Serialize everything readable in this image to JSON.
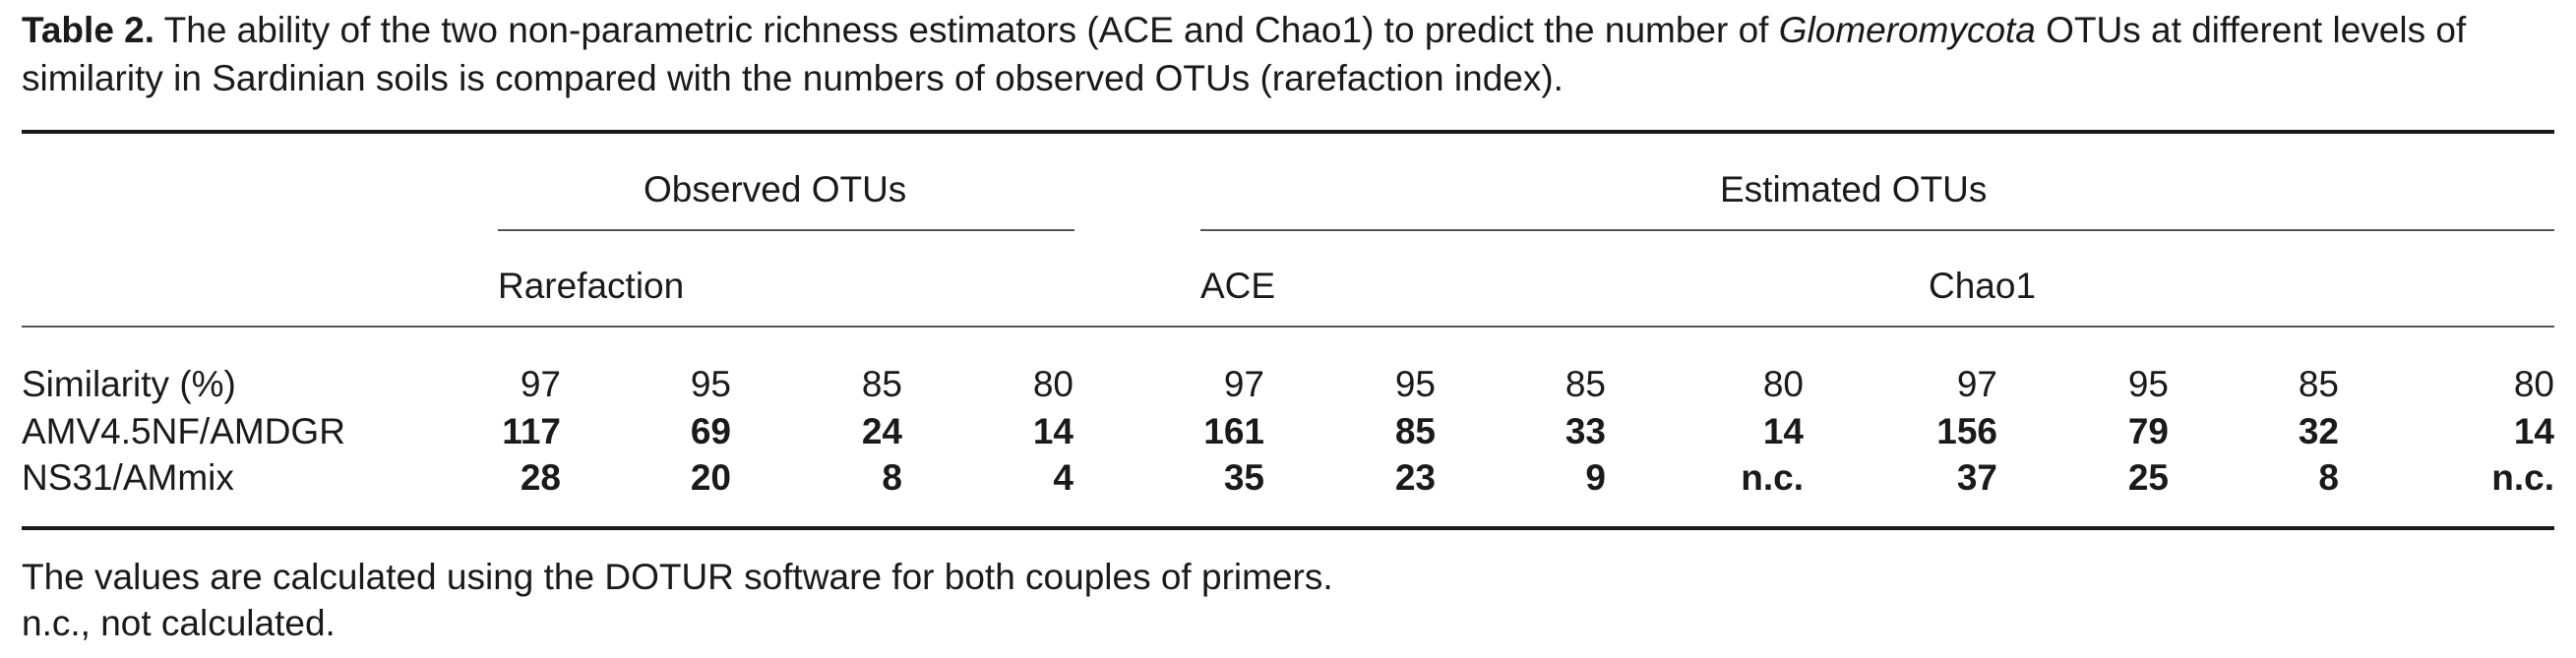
{
  "caption": {
    "label": "Table 2.",
    "text_before_italic": " The ability of the two non-parametric richness estimators (ACE and Chao1) to predict the number of ",
    "italic": "Glomeromycota",
    "text_after_italic": " OTUs at different levels of similarity in Sardinian soils is compared with the numbers of observed OTUs (rarefaction index)."
  },
  "header": {
    "group_observed": "Observed OTUs",
    "group_estimated": "Estimated OTUs",
    "sub_rarefaction": "Rarefaction",
    "sub_ace": "ACE",
    "sub_chao1": "Chao1"
  },
  "rows": [
    {
      "label": "Similarity (%)",
      "values": [
        "97",
        "95",
        "85",
        "80",
        "97",
        "95",
        "85",
        "80",
        "97",
        "95",
        "85",
        "80"
      ]
    },
    {
      "label": "AMV4.5NF/AMDGR",
      "values": [
        "117",
        "69",
        "24",
        "14",
        "161",
        "85",
        "33",
        "14",
        "156",
        "79",
        "32",
        "14"
      ]
    },
    {
      "label": "NS31/AMmix",
      "values": [
        "28",
        "20",
        "8",
        "4",
        "35",
        "23",
        "9",
        "n.c.",
        "37",
        "25",
        "8",
        "n.c."
      ]
    }
  ],
  "footnotes": [
    "The values are calculated using the DOTUR software for both couples of primers.",
    "n.c., not calculated."
  ]
}
